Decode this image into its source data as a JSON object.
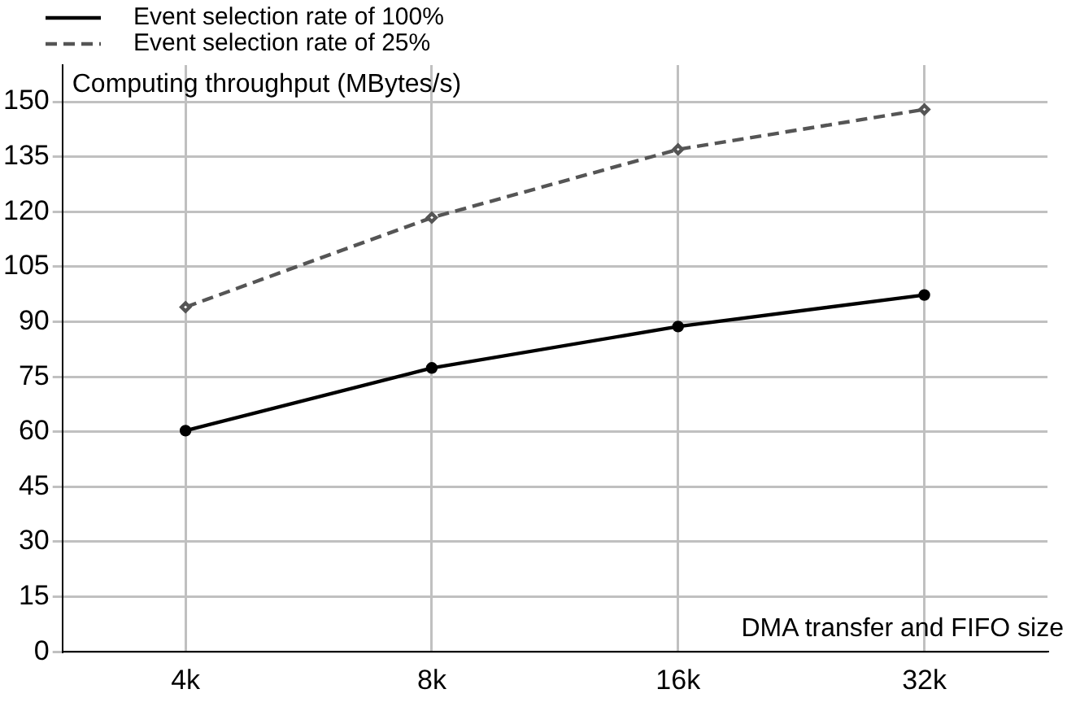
{
  "chart_data": {
    "type": "line",
    "xlabel": "DMA transfer and FIFO size",
    "ylabel": "Computing throughput (MBytes/s)",
    "categories": [
      "4k",
      "8k",
      "16k",
      "32k"
    ],
    "series": [
      {
        "name": "Event selection rate of 100%",
        "color": "#000000",
        "values": [
          60.3,
          77.4,
          88.7,
          97.3
        ],
        "line_style": "solid",
        "marker": "circle"
      },
      {
        "name": "Event selection rate of 25%",
        "color": "#555555",
        "values": [
          94,
          118.4,
          137,
          147.9
        ],
        "line_style": "dashed",
        "marker": "diamond"
      }
    ],
    "ylim": [
      0,
      160
    ],
    "yticks": [
      0,
      15,
      30,
      45,
      60,
      75,
      90,
      105,
      120,
      135,
      150
    ],
    "grid": true,
    "legend": "top left"
  }
}
